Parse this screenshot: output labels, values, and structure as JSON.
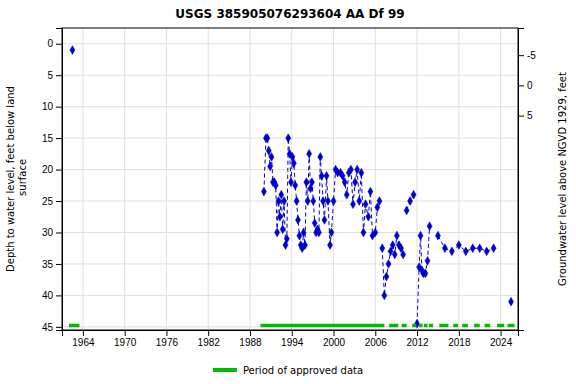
{
  "chart_data": {
    "type": "line",
    "title": "USGS 385905076293604 AA Df  99",
    "y_label": "Depth to water level, feet below land\n surface",
    "y2_label": "Groundwater level above NGVD 1929, feet",
    "xlim": [
      1961.0,
      2026.5
    ],
    "xticks": [
      1964,
      1970,
      1976,
      1982,
      1988,
      1994,
      2000,
      2006,
      2012,
      2018,
      2024
    ],
    "ylim": [
      45.5,
      -2.5
    ],
    "yticks": [
      0,
      5,
      10,
      15,
      20,
      25,
      30,
      35,
      40,
      45
    ],
    "y2lim": [
      40.5,
      -9.5
    ],
    "y2ticks": [
      5,
      0,
      -5
    ],
    "grid": true,
    "legend": "bottom",
    "series": [
      {
        "color": "#0000cc",
        "line_style": "dashed",
        "marker": "diamond",
        "x": [
          1962.5,
          null,
          1990.0,
          1990.3,
          1990.5,
          1990.7,
          1990.9,
          1991.1,
          1991.3,
          1991.5,
          1991.7,
          1991.9,
          1992.1,
          1992.3,
          1992.5,
          1992.7,
          1992.9,
          1993.1,
          1993.3,
          1993.5,
          1993.7,
          1993.9,
          1994.1,
          1994.3,
          1994.5,
          1994.7,
          1994.9,
          1995.1,
          1995.3,
          1995.5,
          1995.7,
          1995.9,
          1996.1,
          1996.3,
          1996.5,
          1996.7,
          1996.9,
          1997.1,
          1997.3,
          1997.5,
          1997.7,
          1997.9,
          1998.1,
          1998.3,
          1998.5,
          1998.7,
          1999.0,
          1999.2,
          1999.5,
          1999.7,
          2000.0,
          2000.3,
          2000.6,
          2001.0,
          2001.3,
          2001.6,
          2001.9,
          2002.2,
          2002.5,
          2002.8,
          2003.1,
          2003.4,
          2003.7,
          2004.0,
          2004.3,
          2004.6,
          2005.0,
          2005.3,
          2005.6,
          2006.0,
          2006.3,
          2006.6,
          null,
          2007.0,
          2007.3,
          2007.6,
          2007.9,
          2008.2,
          2008.5,
          2008.8,
          2009.1,
          2009.4,
          2009.7,
          2010.0,
          null,
          2010.5,
          2011.0,
          2011.5,
          null,
          2012.0,
          2012.3,
          2012.5,
          2012.7,
          2012.9,
          2013.2,
          2013.5,
          2013.8,
          null,
          2015.0,
          2016.0,
          2017.0,
          2018.0,
          2019.0,
          2020.0,
          2021.0,
          2022.0,
          2023.0,
          null,
          2025.5
        ],
        "values": [
          1.0,
          null,
          23.5,
          15.0,
          15.0,
          17.0,
          19.5,
          18.0,
          22.0,
          22.0,
          22.5,
          30.0,
          25.0,
          27.5,
          24.0,
          29.5,
          25.0,
          32.0,
          31.0,
          15.0,
          17.5,
          22.0,
          18.0,
          19.0,
          22.5,
          25.0,
          28.0,
          30.5,
          32.0,
          32.5,
          30.0,
          32.0,
          22.0,
          25.0,
          17.5,
          23.0,
          22.0,
          25.0,
          28.5,
          30.0,
          29.5,
          30.0,
          18.0,
          21.0,
          25.0,
          28.0,
          21.0,
          25.0,
          32.0,
          30.0,
          25.0,
          20.0,
          20.5,
          20.5,
          21.0,
          22.0,
          24.0,
          20.5,
          20.0,
          25.5,
          22.0,
          20.0,
          25.0,
          20.5,
          30.0,
          25.5,
          27.5,
          23.5,
          30.5,
          30.0,
          26.0,
          25.0,
          null,
          32.5,
          40.0,
          37.0,
          35.0,
          33.0,
          32.0,
          33.5,
          30.5,
          32.0,
          32.5,
          33.5,
          null,
          26.5,
          25.0,
          24.0,
          null,
          44.5,
          35.5,
          30.5,
          36.0,
          36.5,
          36.5,
          34.5,
          29.0,
          null,
          30.5,
          32.5,
          33.0,
          32.0,
          33.0,
          32.5,
          32.5,
          33.0,
          32.5,
          null,
          41.0
        ]
      },
      {
        "name": "Period of approved data",
        "color": "#00bb00",
        "line_style": "solid",
        "x": [
          1962.0,
          1963.5,
          null,
          1989.5,
          2007.3,
          null,
          2008.0,
          2009.3,
          null,
          2009.8,
          2010.5,
          null,
          2011.3,
          2011.9,
          null,
          2012.3,
          2012.8,
          null,
          2013.0,
          2013.5,
          null,
          2013.7,
          2014.3,
          null,
          2015.2,
          2016.5,
          null,
          2017.2,
          2017.9,
          null,
          2018.5,
          2019.3,
          null,
          2020.2,
          2021.0,
          null,
          2021.7,
          2022.5,
          null,
          2023.5,
          2024.5,
          null,
          2025.0,
          2026.0
        ],
        "values": [
          44.8,
          44.8,
          null,
          44.8,
          44.8,
          null,
          44.8,
          44.8,
          null,
          44.8,
          44.8,
          null,
          44.8,
          44.8,
          null,
          44.8,
          44.8,
          null,
          44.8,
          44.8,
          null,
          44.8,
          44.8,
          null,
          44.8,
          44.8,
          null,
          44.8,
          44.8,
          null,
          44.8,
          44.8,
          null,
          44.8,
          44.8,
          null,
          44.8,
          44.8,
          null,
          44.8,
          44.8,
          null,
          44.8,
          44.8
        ]
      }
    ]
  }
}
